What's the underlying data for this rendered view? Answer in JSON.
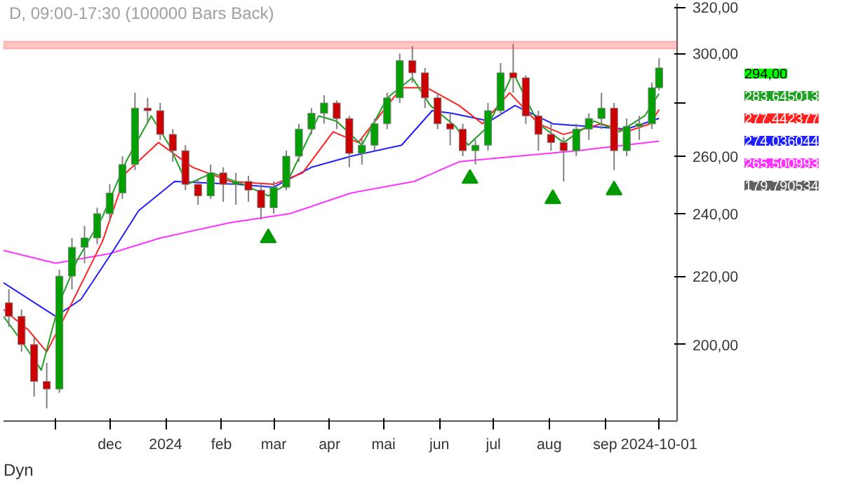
{
  "chart_data": {
    "type": "candlestick",
    "title": "D, 09:00-17:30 (100000 Bars Back)",
    "x": [
      "2023-10-06",
      "2023-10-13",
      "2023-10-20",
      "2023-10-27",
      "2023-11-03",
      "2023-11-10",
      "2023-11-17",
      "2023-11-24",
      "2023-12-01",
      "2023-12-08",
      "2023-12-15",
      "2023-12-22",
      "2023-12-29",
      "2024-01-05",
      "2024-01-12",
      "2024-01-19",
      "2024-01-26",
      "2024-02-02",
      "2024-02-09",
      "2024-02-16",
      "2024-02-23",
      "2024-03-01",
      "2024-03-08",
      "2024-03-15",
      "2024-03-22",
      "2024-03-29",
      "2024-04-05",
      "2024-04-12",
      "2024-04-19",
      "2024-04-26",
      "2024-05-03",
      "2024-05-10",
      "2024-05-17",
      "2024-05-24",
      "2024-05-31",
      "2024-06-07",
      "2024-06-14",
      "2024-06-21",
      "2024-06-28",
      "2024-07-05",
      "2024-07-12",
      "2024-07-19",
      "2024-07-26",
      "2024-08-02",
      "2024-08-09",
      "2024-08-16",
      "2024-08-23",
      "2024-08-30",
      "2024-09-06",
      "2024-09-13",
      "2024-09-20",
      "2024-09-27",
      "2024-10-01"
    ],
    "ohlc": [
      [
        212,
        216,
        205,
        208
      ],
      [
        208,
        210,
        198,
        200
      ],
      [
        200,
        202,
        186,
        190
      ],
      [
        190,
        195,
        183,
        188
      ],
      [
        188,
        222,
        187,
        220
      ],
      [
        220,
        232,
        216,
        229
      ],
      [
        229,
        236,
        224,
        232
      ],
      [
        232,
        242,
        230,
        240
      ],
      [
        240,
        250,
        238,
        247
      ],
      [
        247,
        260,
        245,
        257
      ],
      [
        257,
        284,
        255,
        278
      ],
      [
        278,
        282,
        272,
        277
      ],
      [
        277,
        280,
        266,
        268
      ],
      [
        268,
        270,
        258,
        262
      ],
      [
        262,
        264,
        248,
        250
      ],
      [
        250,
        252,
        243,
        246
      ],
      [
        246,
        257,
        245,
        254
      ],
      [
        254,
        256,
        244,
        250
      ],
      [
        250,
        254,
        243,
        251
      ],
      [
        251,
        253,
        244,
        248
      ],
      [
        248,
        250,
        238,
        242
      ],
      [
        242,
        251,
        240,
        249
      ],
      [
        249,
        262,
        248,
        260
      ],
      [
        260,
        272,
        258,
        270
      ],
      [
        270,
        278,
        268,
        276
      ],
      [
        276,
        283,
        272,
        280
      ],
      [
        280,
        281,
        270,
        274
      ],
      [
        274,
        275,
        256,
        261
      ],
      [
        261,
        267,
        257,
        264
      ],
      [
        264,
        274,
        262,
        272
      ],
      [
        272,
        284,
        270,
        282
      ],
      [
        282,
        300,
        280,
        297
      ],
      [
        297,
        303,
        288,
        292
      ],
      [
        292,
        294,
        278,
        282
      ],
      [
        282,
        284,
        270,
        272
      ],
      [
        272,
        276,
        264,
        270
      ],
      [
        270,
        272,
        260,
        262
      ],
      [
        262,
        266,
        257,
        264
      ],
      [
        264,
        280,
        262,
        277
      ],
      [
        277,
        296,
        275,
        292
      ],
      [
        292,
        304,
        284,
        290
      ],
      [
        290,
        291,
        272,
        275
      ],
      [
        275,
        277,
        262,
        268
      ],
      [
        268,
        272,
        262,
        265
      ],
      [
        265,
        267,
        251,
        262
      ],
      [
        262,
        272,
        260,
        270
      ],
      [
        270,
        276,
        266,
        274
      ],
      [
        274,
        284,
        270,
        278
      ],
      [
        278,
        280,
        255,
        262
      ],
      [
        262,
        274,
        260,
        271
      ],
      [
        271,
        275,
        266,
        272
      ],
      [
        272,
        288,
        270,
        286
      ],
      [
        286,
        298,
        285,
        294
      ]
    ],
    "colors": [
      "#cc0000",
      "#cc0000",
      "#cc0000",
      "#cc0000",
      "#00a000",
      "#00a000",
      "#00a000",
      "#00a000",
      "#00a000",
      "#00a000",
      "#00a000",
      "#cc0000",
      "#cc0000",
      "#cc0000",
      "#cc0000",
      "#cc0000",
      "#00a000",
      "#cc0000",
      "#00a000",
      "#cc0000",
      "#cc0000",
      "#00a000",
      "#00a000",
      "#00a000",
      "#00a000",
      "#00a000",
      "#cc0000",
      "#cc0000",
      "#00a000",
      "#00a000",
      "#00a000",
      "#00a000",
      "#cc0000",
      "#cc0000",
      "#cc0000",
      "#cc0000",
      "#cc0000",
      "#00a000",
      "#00a000",
      "#00a000",
      "#cc0000",
      "#cc0000",
      "#cc0000",
      "#cc0000",
      "#cc0000",
      "#00a000",
      "#00a000",
      "#00a000",
      "#cc0000",
      "#00a000",
      "#00a000",
      "#00a000",
      "#00a000"
    ],
    "series": [
      {
        "type": "line",
        "color": "#ff33ff",
        "x": [
          "2023-10-03",
          "2023-11-01",
          "2023-12-01",
          "2023-12-29",
          "2024-02-06",
          "2024-03-10",
          "2024-04-13",
          "2024-05-18",
          "2024-06-12",
          "2024-07-14",
          "2024-08-17",
          "2024-10-01"
        ],
        "values": [
          228,
          224,
          227,
          232,
          237,
          240,
          247,
          251,
          258,
          260,
          262,
          265.500993
        ]
      },
      {
        "type": "line",
        "color": "#2020ff",
        "x": [
          "2023-10-03",
          "2023-11-01",
          "2023-11-15",
          "2023-12-03",
          "2023-12-17",
          "2024-01-06",
          "2024-02-09",
          "2024-03-01",
          "2024-03-22",
          "2024-04-13",
          "2024-05-11",
          "2024-05-28",
          "2024-06-08",
          "2024-06-29",
          "2024-07-13",
          "2024-08-03",
          "2024-08-23",
          "2024-09-13",
          "2024-10-01"
        ],
        "values": [
          218,
          208,
          213,
          228,
          241,
          251,
          250,
          249,
          256,
          260,
          264,
          277,
          276,
          273,
          279,
          272,
          271,
          270,
          274.036044
        ]
      },
      {
        "type": "line",
        "color": "#ff2020",
        "x": [
          "2023-10-03",
          "2023-10-17",
          "2023-10-27",
          "2023-11-10",
          "2023-11-27",
          "2023-12-10",
          "2023-12-28",
          "2024-01-16",
          "2024-02-06",
          "2024-03-01",
          "2024-03-17",
          "2024-04-03",
          "2024-04-17",
          "2024-05-11",
          "2024-05-25",
          "2024-06-12",
          "2024-06-25",
          "2024-07-10",
          "2024-07-26",
          "2024-08-09",
          "2024-08-30",
          "2024-09-13",
          "2024-09-26",
          "2024-10-01"
        ],
        "values": [
          210,
          204,
          198,
          212,
          231,
          254,
          265,
          256,
          251,
          250,
          254,
          269,
          265,
          286,
          286,
          279,
          272,
          284,
          272,
          268,
          272,
          269,
          272,
          277.442377
        ]
      },
      {
        "type": "line",
        "color": "#20a020",
        "x": [
          "2023-10-03",
          "2023-10-13",
          "2023-10-24",
          "2023-11-03",
          "2023-11-13",
          "2023-11-27",
          "2023-12-10",
          "2023-12-24",
          "2024-01-03",
          "2024-01-13",
          "2024-01-27",
          "2024-02-13",
          "2024-02-27",
          "2024-03-08",
          "2024-03-26",
          "2024-04-05",
          "2024-04-19",
          "2024-05-03",
          "2024-05-17",
          "2024-05-27",
          "2024-06-10",
          "2024-06-17",
          "2024-06-28",
          "2024-07-12",
          "2024-07-26",
          "2024-08-09",
          "2024-08-26",
          "2024-09-09",
          "2024-09-23",
          "2024-10-01"
        ],
        "values": [
          208,
          201,
          193,
          212,
          225,
          239,
          258,
          275,
          264,
          250,
          254,
          250,
          246,
          250,
          275,
          273,
          264,
          282,
          290,
          279,
          271,
          264,
          271,
          292,
          272,
          265,
          273,
          269,
          275,
          283.645013
        ]
      },
      {
        "type": "scatter",
        "marker": "triangle",
        "color": "#009900",
        "x": [
          "2024-02-27",
          "2024-06-18",
          "2024-08-03",
          "2024-09-06"
        ],
        "values": [
          232,
          252,
          245,
          248
        ]
      }
    ],
    "log": true,
    "ylim": [
      179.790534,
      321.6
    ],
    "yticks": [
      {
        "value": 200,
        "label": "200,00"
      },
      {
        "value": 220,
        "label": "220,00"
      },
      {
        "value": 240,
        "label": "240,00"
      },
      {
        "value": 260,
        "label": "260,00"
      },
      {
        "value": 280,
        "label": null
      },
      {
        "value": 300,
        "label": "300,00"
      },
      {
        "value": 320,
        "label": "320,00"
      }
    ],
    "xlim": [
      "2023-10-03",
      "2024-10-11"
    ],
    "xticks": [
      {
        "value": "2023-11-01",
        "label": null
      },
      {
        "value": "2023-12-01",
        "label": "dec"
      },
      {
        "value": "2024-01-01",
        "label": "2024"
      },
      {
        "value": "2024-02-01",
        "label": "feb"
      },
      {
        "value": "2024-03-01",
        "label": "mar"
      },
      {
        "value": "2024-04-01",
        "label": "apr"
      },
      {
        "value": "2024-05-01",
        "label": "mai"
      },
      {
        "value": "2024-06-01",
        "label": "jun"
      },
      {
        "value": "2024-07-01",
        "label": "jul"
      },
      {
        "value": "2024-08-01",
        "label": "aug"
      },
      {
        "value": "2024-09-01",
        "label": "sep"
      },
      {
        "value": "2024-10-01",
        "label": "2024-10-01"
      }
    ],
    "bands": [
      {
        "axis": "y",
        "from": 302,
        "to": 305,
        "color": "#ff4040"
      }
    ],
    "annotations": [
      "294,00",
      "283,645013",
      "277,442377",
      "274,036044",
      "265,500993",
      "179,790534",
      "Dyn"
    ],
    "grid": false
  }
}
